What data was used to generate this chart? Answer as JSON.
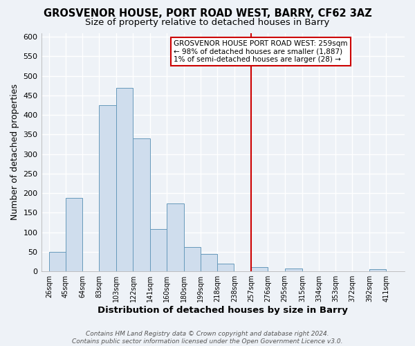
{
  "title": "GROSVENOR HOUSE, PORT ROAD WEST, BARRY, CF62 3AZ",
  "subtitle": "Size of property relative to detached houses in Barry",
  "xlabel": "Distribution of detached houses by size in Barry",
  "ylabel": "Number of detached properties",
  "bar_left_edges": [
    26,
    45,
    64,
    83,
    103,
    122,
    141,
    160,
    180,
    199,
    218,
    238,
    257,
    276,
    295,
    315,
    334,
    353,
    372,
    392
  ],
  "bar_widths": [
    19,
    19,
    19,
    20,
    19,
    19,
    19,
    20,
    19,
    19,
    19,
    19,
    19,
    19,
    20,
    19,
    19,
    19,
    20,
    19
  ],
  "bar_heights": [
    50,
    188,
    0,
    425,
    470,
    340,
    108,
    173,
    62,
    44,
    20,
    0,
    10,
    0,
    7,
    0,
    0,
    0,
    0,
    5
  ],
  "bar_color": "#cfdded",
  "bar_edge_color": "#6699bb",
  "tick_labels": [
    "26sqm",
    "45sqm",
    "64sqm",
    "83sqm",
    "103sqm",
    "122sqm",
    "141sqm",
    "160sqm",
    "180sqm",
    "199sqm",
    "218sqm",
    "238sqm",
    "257sqm",
    "276sqm",
    "295sqm",
    "315sqm",
    "334sqm",
    "353sqm",
    "372sqm",
    "392sqm",
    "411sqm"
  ],
  "tick_positions": [
    26,
    45,
    64,
    83,
    103,
    122,
    141,
    160,
    180,
    199,
    218,
    238,
    257,
    276,
    295,
    315,
    334,
    353,
    372,
    392,
    411
  ],
  "yticks": [
    0,
    50,
    100,
    150,
    200,
    250,
    300,
    350,
    400,
    450,
    500,
    550,
    600
  ],
  "ylim": [
    0,
    610
  ],
  "xlim": [
    17,
    432
  ],
  "vline_x": 257,
  "vline_color": "#cc0000",
  "annotation_title": "GROSVENOR HOUSE PORT ROAD WEST: 259sqm",
  "annotation_line1": "← 98% of detached houses are smaller (1,887)",
  "annotation_line2": "1% of semi-detached houses are larger (28) →",
  "footer_line1": "Contains HM Land Registry data © Crown copyright and database right 2024.",
  "footer_line2": "Contains public sector information licensed under the Open Government Licence v3.0.",
  "bg_color": "#eef2f7",
  "grid_color": "#ffffff",
  "title_fontsize": 10.5,
  "subtitle_fontsize": 9.5,
  "axis_label_fontsize": 9,
  "tick_fontsize": 7,
  "footer_fontsize": 6.5,
  "annotation_fontsize": 7.5
}
